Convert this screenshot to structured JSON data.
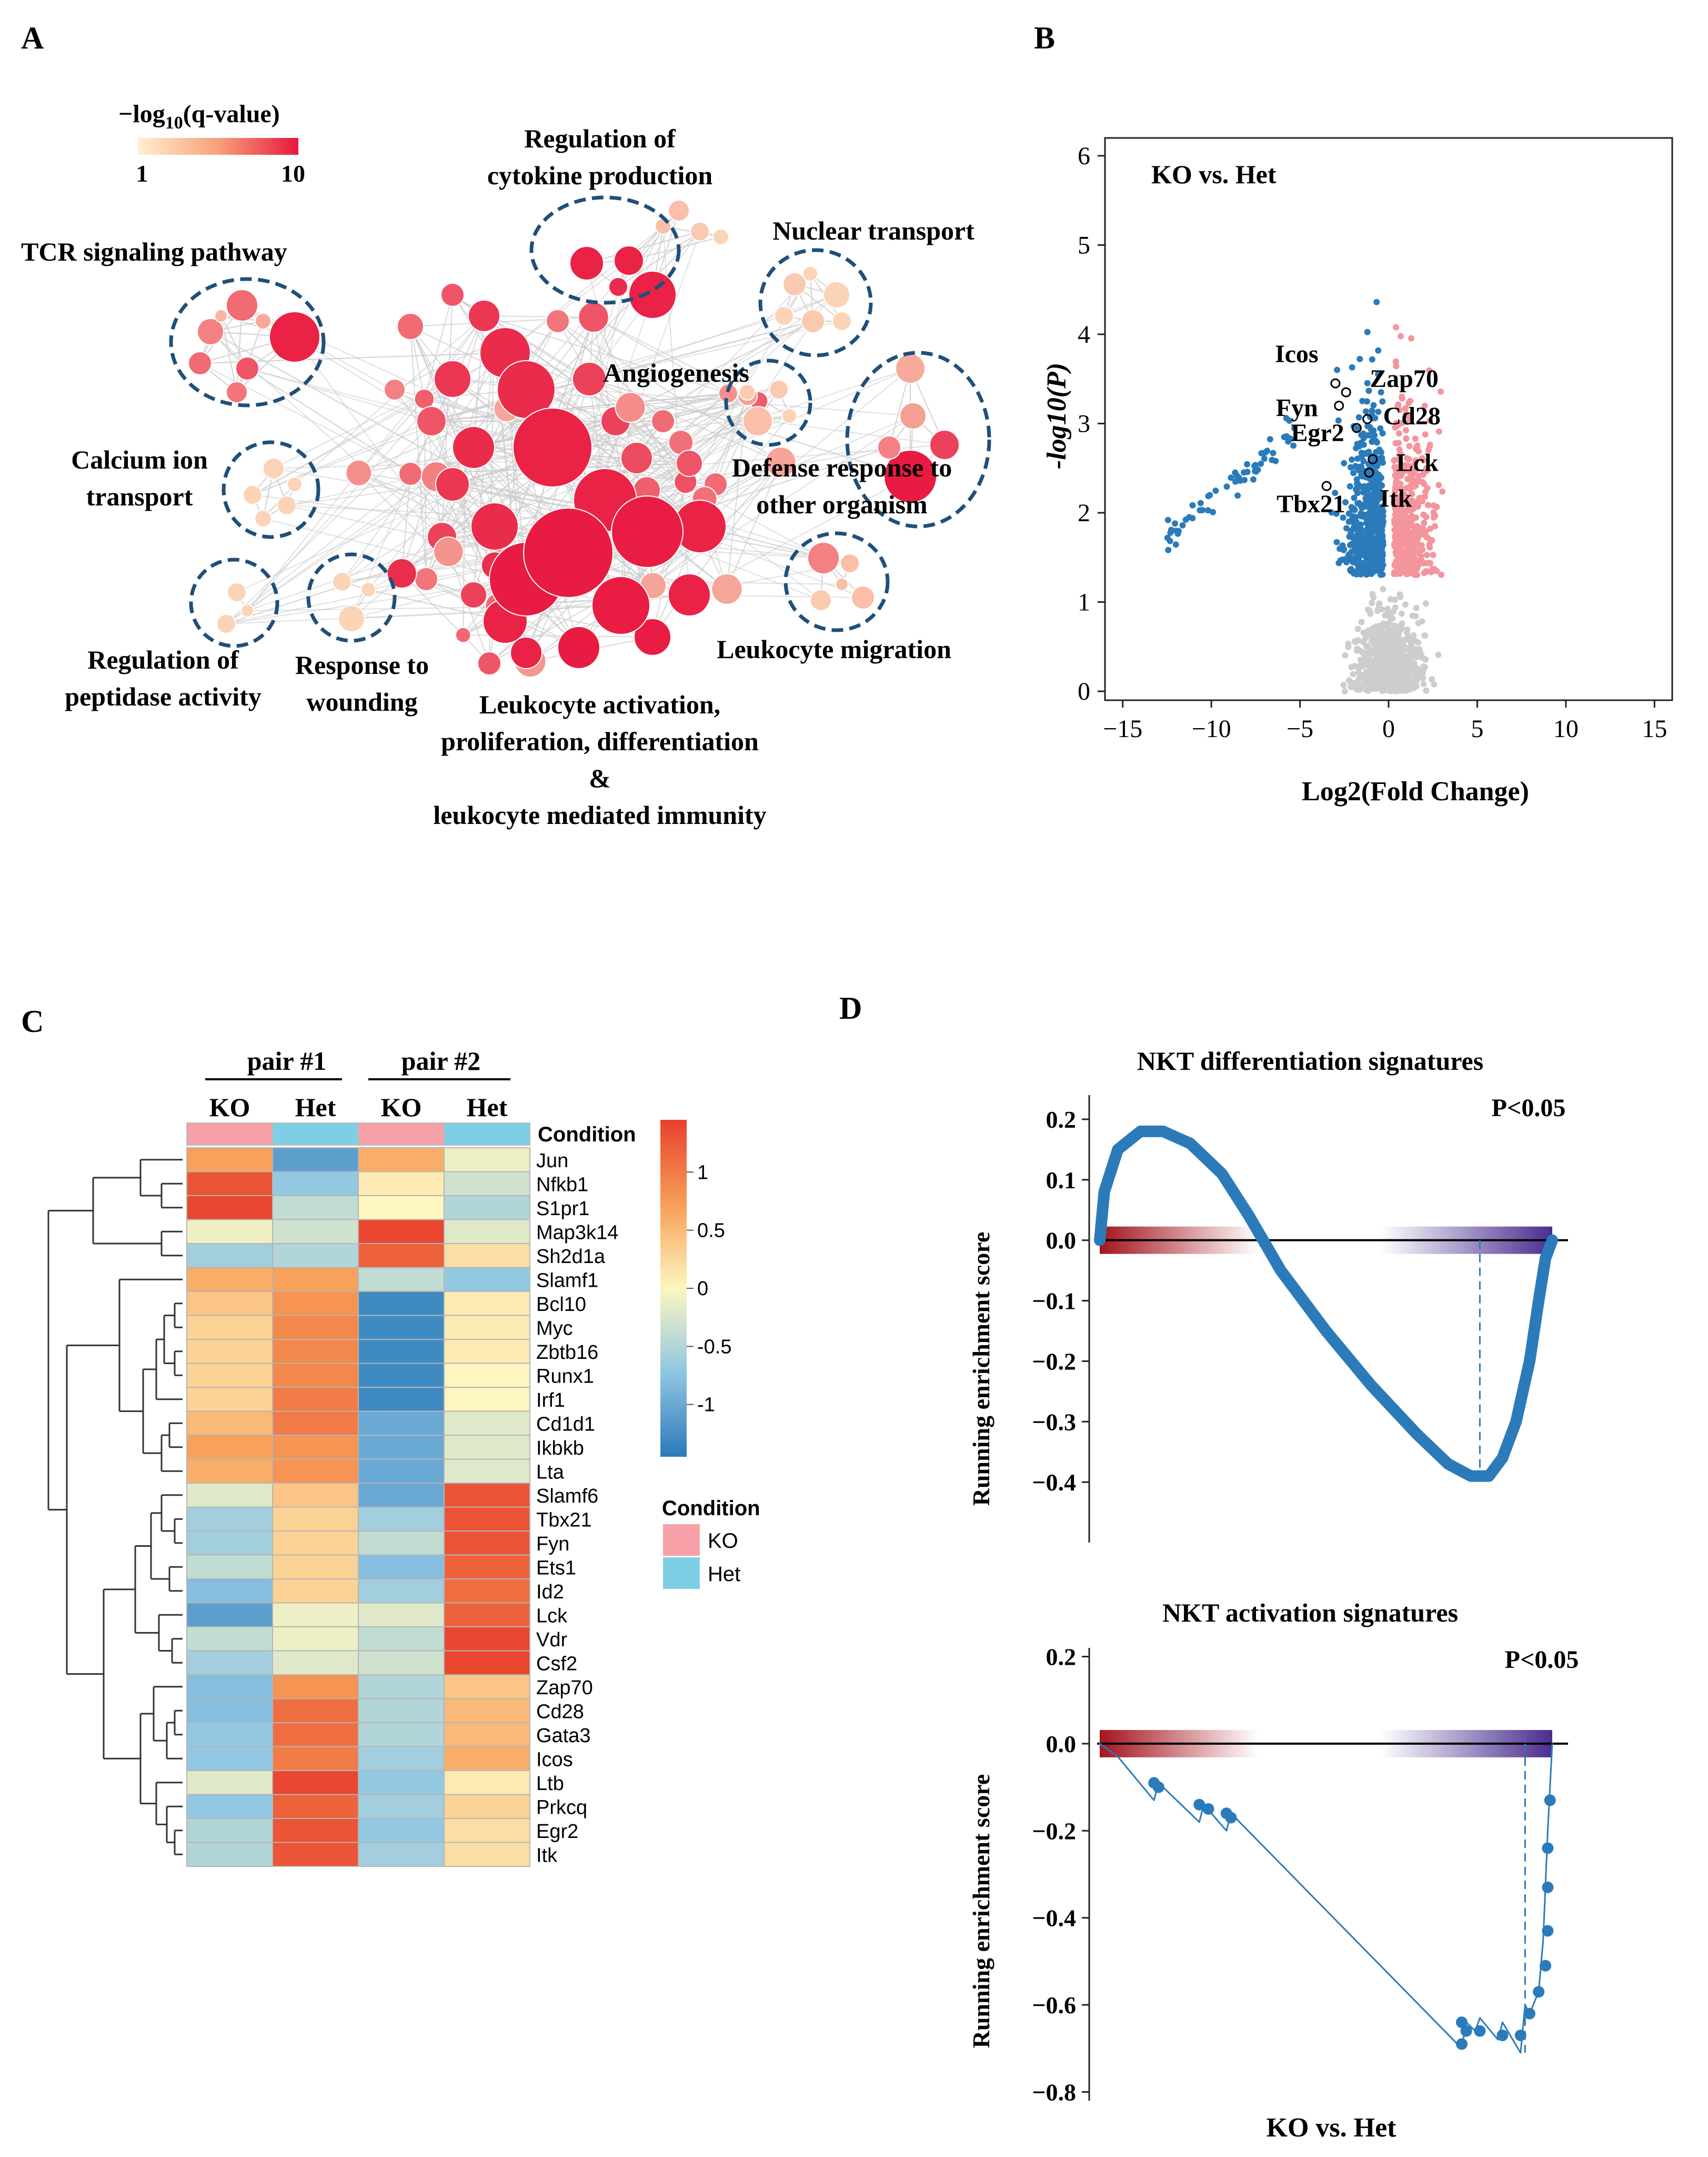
{
  "panel_labels": [
    "A",
    "B",
    "C",
    "D"
  ],
  "chart_data": [
    {
      "id": "A",
      "type": "network",
      "legend": {
        "title_prefix": "−log",
        "title_sub": "10",
        "title_suffix": "(q-value)",
        "min_label": "1",
        "max_label": "10",
        "color_low": "#fde9c4",
        "color_high": "#e8173f"
      },
      "clusters": [
        {
          "key": "tcr",
          "lines": [
            "TCR signaling pathway"
          ]
        },
        {
          "key": "cytokine",
          "lines": [
            "Regulation of",
            "cytokine production"
          ]
        },
        {
          "key": "nuclear",
          "lines": [
            "Nuclear transport"
          ]
        },
        {
          "key": "angio",
          "lines": [
            "Angiogenesis"
          ]
        },
        {
          "key": "calcium",
          "lines": [
            "Calcium ion",
            "transport"
          ]
        },
        {
          "key": "defense",
          "lines": [
            "Defense response to",
            "other organism"
          ]
        },
        {
          "key": "peptidase",
          "lines": [
            "Regulation of",
            "peptidase activity"
          ]
        },
        {
          "key": "wounding",
          "lines": [
            "Response to",
            "wounding"
          ]
        },
        {
          "key": "migration",
          "lines": [
            "Leukocyte migration"
          ]
        },
        {
          "key": "activation",
          "lines": [
            "Leukocyte activation,",
            "proliferation, differentiation",
            "&",
            "leukocyte mediated immunity"
          ]
        }
      ]
    },
    {
      "id": "B",
      "type": "scatter",
      "title": "KO vs. Het",
      "xlabel": "Log2(Fold Change)",
      "ylabel": "-log10(P)",
      "xlim": [
        -16,
        16
      ],
      "ylim": [
        -0.1,
        6.2
      ],
      "xticks": [
        -15,
        -10,
        -5,
        0,
        5,
        10,
        15
      ],
      "yticks": [
        0,
        1,
        2,
        3,
        4,
        5,
        6
      ],
      "significance_threshold": 1.3,
      "colors": {
        "down": "#2b7bba",
        "up": "#f4949c",
        "ns": "#cdcdcd"
      },
      "labeled_genes": [
        {
          "gene": "Icos",
          "x": -3.0,
          "y": 3.45
        },
        {
          "gene": "Zap70",
          "x": -2.4,
          "y": 3.35
        },
        {
          "gene": "Fyn",
          "x": -2.8,
          "y": 3.2
        },
        {
          "gene": "Egr2",
          "x": -1.8,
          "y": 2.95
        },
        {
          "gene": "Cd28",
          "x": -1.2,
          "y": 3.05
        },
        {
          "gene": "Lck",
          "x": -0.9,
          "y": 2.6
        },
        {
          "gene": "Tbx21",
          "x": -3.5,
          "y": 2.3
        },
        {
          "gene": "Itk",
          "x": -1.1,
          "y": 2.45
        }
      ]
    },
    {
      "id": "C",
      "type": "heatmap",
      "group_labels": [
        "pair #1",
        "pair #2"
      ],
      "columns": [
        "KO",
        "Het",
        "KO",
        "Het"
      ],
      "condition_row_label": "Condition",
      "column_conditions": [
        "KO",
        "Het",
        "KO",
        "Het"
      ],
      "rows": [
        "Jun",
        "Nfkb1",
        "S1pr1",
        "Map3k14",
        "Sh2d1a",
        "Slamf1",
        "Bcl10",
        "Myc",
        "Zbtb16",
        "Runx1",
        "Irf1",
        "Cd1d1",
        "Ikbkb",
        "Lta",
        "Slamf6",
        "Tbx21",
        "Fyn",
        "Ets1",
        "Id2",
        "Lck",
        "Vdr",
        "Csf2",
        "Zap70",
        "Cd28",
        "Gata3",
        "Icos",
        "Ltb",
        "Prkcq",
        "Egr2",
        "Itk"
      ],
      "values": [
        [
          0.7,
          -1.1,
          0.6,
          -0.1
        ],
        [
          1.3,
          -0.7,
          0.1,
          -0.3
        ],
        [
          1.4,
          -0.4,
          0.0,
          -0.5
        ],
        [
          -0.1,
          -0.3,
          1.4,
          -0.2
        ],
        [
          -0.6,
          -0.5,
          1.2,
          0.2
        ],
        [
          0.6,
          0.7,
          -0.4,
          -0.7
        ],
        [
          0.4,
          0.8,
          -1.3,
          0.1
        ],
        [
          0.3,
          0.9,
          -1.3,
          0.1
        ],
        [
          0.3,
          0.9,
          -1.3,
          0.1
        ],
        [
          0.3,
          0.9,
          -1.3,
          0.0
        ],
        [
          0.3,
          1.0,
          -1.3,
          0.0
        ],
        [
          0.5,
          1.0,
          -1.0,
          -0.2
        ],
        [
          0.7,
          0.8,
          -1.0,
          -0.2
        ],
        [
          0.6,
          0.8,
          -1.0,
          -0.2
        ],
        [
          -0.2,
          0.4,
          -1.0,
          1.3
        ],
        [
          -0.6,
          0.3,
          -0.6,
          1.3
        ],
        [
          -0.6,
          0.3,
          -0.4,
          1.3
        ],
        [
          -0.4,
          0.3,
          -0.8,
          1.2
        ],
        [
          -0.8,
          0.3,
          -0.6,
          1.1
        ],
        [
          -1.1,
          -0.1,
          -0.2,
          1.2
        ],
        [
          -0.4,
          -0.1,
          -0.4,
          1.4
        ],
        [
          -0.6,
          -0.2,
          -0.3,
          1.4
        ],
        [
          -0.8,
          0.8,
          -0.5,
          0.4
        ],
        [
          -0.8,
          1.1,
          -0.5,
          0.5
        ],
        [
          -0.7,
          1.1,
          -0.5,
          0.5
        ],
        [
          -0.7,
          1.0,
          -0.6,
          0.6
        ],
        [
          -0.2,
          1.4,
          -0.7,
          0.1
        ],
        [
          -0.7,
          1.2,
          -0.6,
          0.3
        ],
        [
          -0.5,
          1.3,
          -0.7,
          0.2
        ],
        [
          -0.5,
          1.3,
          -0.6,
          0.2
        ]
      ],
      "colorbar": {
        "ticks": [
          1,
          0.5,
          0,
          -0.5,
          -1
        ],
        "range": [
          -1.45,
          1.45
        ]
      },
      "legend_title": "Condition",
      "legend": [
        {
          "label": "KO",
          "color": "#f6a1a8"
        },
        {
          "label": "Het",
          "color": "#7ecfe5"
        }
      ]
    },
    {
      "id": "D1",
      "type": "line",
      "title": "NKT differentiation signatures",
      "pvalue": "P<0.05",
      "ylabel": "Running enrichment score",
      "ylim": [
        -0.5,
        0.24
      ],
      "yticks": [
        0.2,
        0.1,
        0.0,
        -0.1,
        -0.2,
        -0.3,
        -0.4
      ],
      "ytick_labels": [
        "0.2",
        "0.1",
        "0.0",
        "−0.1",
        "−0.2",
        "−0.3",
        "−0.4"
      ],
      "curve": [
        [
          0,
          0.0
        ],
        [
          0.01,
          0.08
        ],
        [
          0.04,
          0.15
        ],
        [
          0.09,
          0.18
        ],
        [
          0.14,
          0.18
        ],
        [
          0.2,
          0.16
        ],
        [
          0.27,
          0.11
        ],
        [
          0.33,
          0.04
        ],
        [
          0.4,
          -0.05
        ],
        [
          0.5,
          -0.15
        ],
        [
          0.6,
          -0.24
        ],
        [
          0.7,
          -0.32
        ],
        [
          0.77,
          -0.37
        ],
        [
          0.82,
          -0.39
        ],
        [
          0.86,
          -0.39
        ],
        [
          0.89,
          -0.36
        ],
        [
          0.92,
          -0.3
        ],
        [
          0.95,
          -0.2
        ],
        [
          0.97,
          -0.1
        ],
        [
          0.985,
          -0.03
        ],
        [
          1.0,
          0.0
        ]
      ],
      "dashed_at": 0.84
    },
    {
      "id": "D2",
      "type": "line",
      "title": "NKT activation signatures",
      "pvalue": "P<0.05",
      "ylabel": "Running enrichment score",
      "xlabel": "KO vs. Het",
      "ylim": [
        -0.82,
        0.22
      ],
      "yticks": [
        0.2,
        0.0,
        -0.2,
        -0.4,
        -0.6,
        -0.8
      ],
      "ytick_labels": [
        "0.2",
        "0.0",
        "−0.2",
        "−0.4",
        "−0.6",
        "−0.8"
      ],
      "curve": [
        [
          0,
          0.0
        ],
        [
          0.04,
          -0.03
        ],
        [
          0.12,
          -0.13
        ],
        [
          0.13,
          -0.09
        ],
        [
          0.22,
          -0.18
        ],
        [
          0.23,
          -0.14
        ],
        [
          0.28,
          -0.2
        ],
        [
          0.29,
          -0.16
        ],
        [
          0.8,
          -0.7
        ],
        [
          0.81,
          -0.64
        ],
        [
          0.83,
          -0.66
        ],
        [
          0.84,
          -0.63
        ],
        [
          0.88,
          -0.68
        ],
        [
          0.89,
          -0.64
        ],
        [
          0.93,
          -0.71
        ],
        [
          0.94,
          -0.6
        ],
        [
          0.95,
          -0.62
        ],
        [
          0.97,
          -0.57
        ],
        [
          0.98,
          -0.45
        ],
        [
          0.99,
          -0.2
        ],
        [
          1.0,
          0.0
        ]
      ],
      "points": [
        [
          0.12,
          -0.09
        ],
        [
          0.13,
          -0.1
        ],
        [
          0.22,
          -0.14
        ],
        [
          0.24,
          -0.15
        ],
        [
          0.28,
          -0.16
        ],
        [
          0.29,
          -0.17
        ],
        [
          0.8,
          -0.64
        ],
        [
          0.81,
          -0.66
        ],
        [
          0.8,
          -0.69
        ],
        [
          0.84,
          -0.66
        ],
        [
          0.89,
          -0.67
        ],
        [
          0.93,
          -0.67
        ],
        [
          0.95,
          -0.62
        ],
        [
          0.97,
          -0.57
        ],
        [
          0.985,
          -0.51
        ],
        [
          0.99,
          -0.43
        ],
        [
          0.99,
          -0.33
        ],
        [
          0.99,
          -0.24
        ],
        [
          0.995,
          -0.13
        ]
      ],
      "dashed_at": 0.94
    }
  ]
}
